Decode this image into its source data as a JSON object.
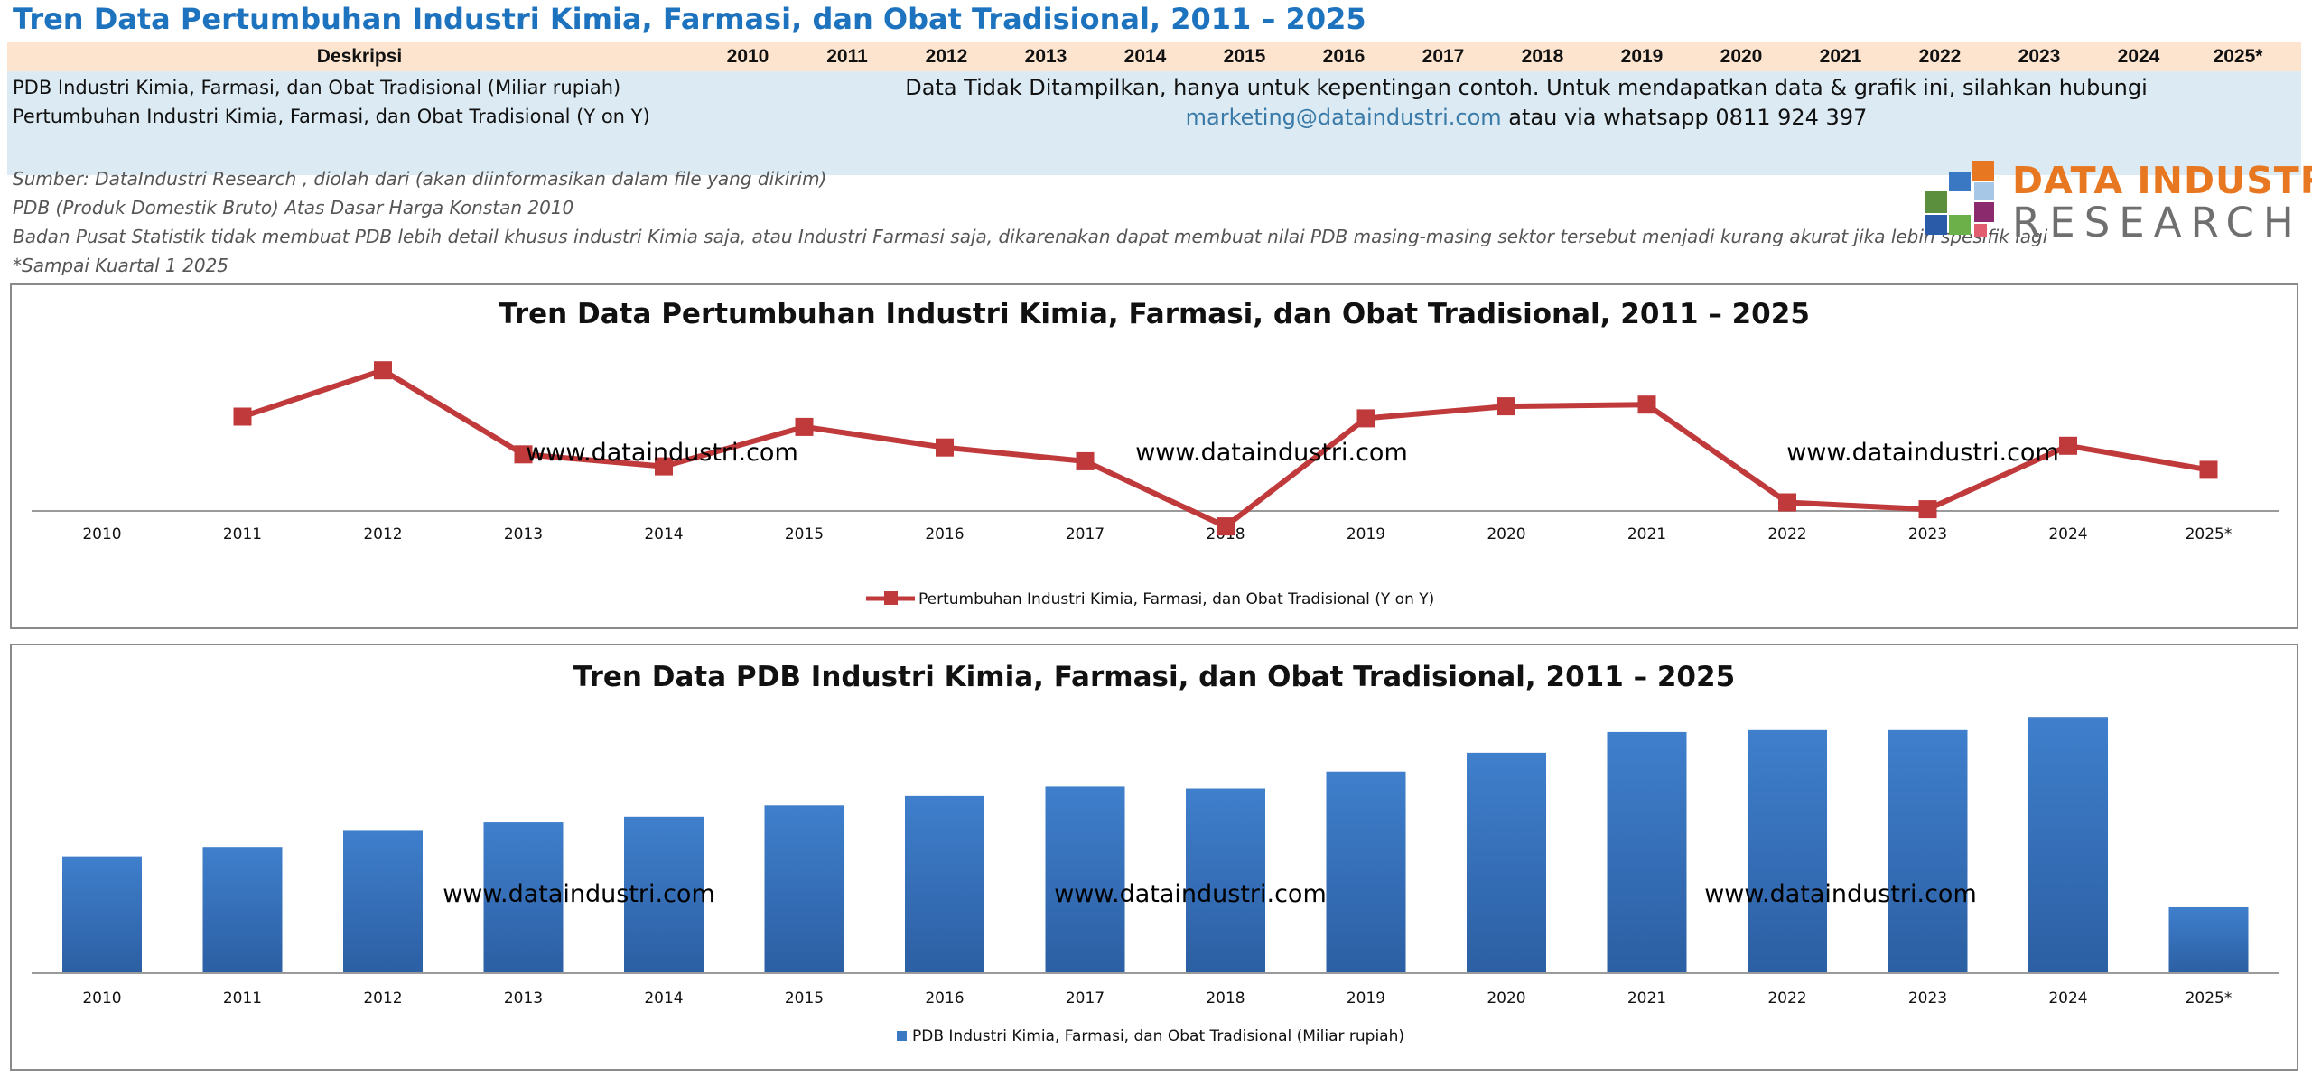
{
  "page": {
    "title": "Tren Data Pertumbuhan Industri Kimia, Farmasi, dan Obat Tradisional, 2011 – 2025"
  },
  "table": {
    "header_desc": "Deskripsi",
    "years": [
      "2010",
      "2011",
      "2012",
      "2013",
      "2014",
      "2015",
      "2016",
      "2017",
      "2018",
      "2019",
      "2020",
      "2021",
      "2022",
      "2023",
      "2024",
      "2025*"
    ],
    "row1_label": "PDB Industri Kimia, Farmasi, dan Obat Tradisional (Miliar rupiah)",
    "row2_label": "Pertumbuhan Industri  Kimia, Farmasi, dan Obat Tradisional (Y on Y)",
    "notice_line1": "Data Tidak Ditampilkan, hanya untuk kepentingan contoh. Untuk mendapatkan data & grafik  ini, silahkan hubungi",
    "notice_email": "marketing@dataindustri.com",
    "notice_rest": " atau via whatsapp 0811 924 397"
  },
  "notes": {
    "source": "Sumber: DataIndustri Research , diolah dari (akan diinformasikan dalam file yang dikirim)",
    "pdb": "PDB (Produk Domestik Bruto) Atas Dasar Harga Konstan 2010",
    "bps": "Badan Pusat Statistik tidak membuat PDB lebih detail khusus industri Kimia saja, atau Industri Farmasi saja, dikarenakan dapat membuat nilai PDB masing-masing sektor tersebut menjadi kurang akurat jika lebih spesifik lagi",
    "q1": "*Sampai Kuartal 1 2025"
  },
  "logo": {
    "line1": "DATA INDUSTRI",
    "line2": "RESEARCH"
  },
  "watermark": "www.dataindustri.com",
  "colors": {
    "title": "#1e73be",
    "line": "#c0393b",
    "marker": "#c0393b",
    "bar": "#3a78c4",
    "logo_orange": "#e87722"
  },
  "chart_data": [
    {
      "type": "line",
      "title": "Tren Data Pertumbuhan Industri Kimia, Farmasi, dan Obat Tradisional, 2011 – 2025",
      "categories": [
        "2010",
        "2011",
        "2012",
        "2013",
        "2014",
        "2015",
        "2016",
        "2017",
        "2018",
        "2019",
        "2020",
        "2021",
        "2022",
        "2023",
        "2024",
        "2025*"
      ],
      "series": [
        {
          "name": "Pertumbuhan Industri  Kimia, Farmasi, dan Obat Tradisional (Y on Y)",
          "values": [
            null,
            5.5,
            8.2,
            3.3,
            2.6,
            4.9,
            3.7,
            2.9,
            -0.9,
            5.4,
            6.1,
            6.2,
            0.5,
            0.1,
            3.8,
            2.4
          ]
        }
      ],
      "ylim": [
        -1,
        10
      ],
      "legend": "bottom",
      "grid": false
    },
    {
      "type": "bar",
      "title": "Tren Data PDB Industri Kimia, Farmasi, dan Obat Tradisional, 2011 – 2025",
      "categories": [
        "2010",
        "2011",
        "2012",
        "2013",
        "2014",
        "2015",
        "2016",
        "2017",
        "2018",
        "2019",
        "2020",
        "2021",
        "2022",
        "2023",
        "2024",
        "2025*"
      ],
      "series": [
        {
          "name": "PDB Industri Kimia, Farmasi, dan Obat Tradisional (Miliar rupiah)",
          "values": [
            62,
            67,
            76,
            80,
            83,
            89,
            94,
            99,
            98,
            107,
            117,
            128,
            129,
            129,
            136,
            35
          ]
        }
      ],
      "ylim": [
        0,
        150
      ],
      "legend": "bottom",
      "grid": false
    }
  ]
}
